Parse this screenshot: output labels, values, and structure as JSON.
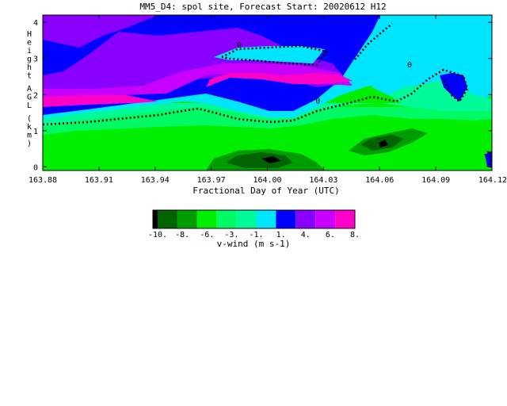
{
  "chart_data": {
    "type": "contour",
    "title": "MM5_D4: spol site,  Forecast Start: 20020612 H12",
    "xlabel": "Fractional Day of Year (UTC)",
    "ylabel": "Height AGL (km)",
    "x_ticks": [
      "163.88",
      "163.91",
      "163.94",
      "163.97",
      "164.00",
      "164.03",
      "164.06",
      "164.09",
      "164.12"
    ],
    "y_ticks": [
      "0",
      "1",
      "2",
      "3",
      "4"
    ],
    "xlim": [
      163.88,
      164.12
    ],
    "ylim": [
      -0.1,
      4.2
    ],
    "contour_labels": [
      {
        "text": "0",
        "x": 163.985,
        "y": 3.3
      },
      {
        "text": "0",
        "x": 164.076,
        "y": 2.75
      },
      {
        "text": "0",
        "x": 164.027,
        "y": 1.75
      },
      {
        "text": "-",
        "x": 163.934,
        "y": 2.2
      }
    ],
    "colorbar": {
      "label": "v-wind (m s-1)",
      "tick_labels": [
        "-10.",
        "-8.",
        "-6.",
        "-3.",
        "-1.",
        "1.",
        "4.",
        "6.",
        "8."
      ],
      "colors": [
        "#000000",
        "#006400",
        "#009d00",
        "#00ee00",
        "#00fa64",
        "#00fa9a",
        "#00e5ff",
        "#0000ff",
        "#8a00ff",
        "#c800ff",
        "#ff00c8"
      ]
    }
  }
}
